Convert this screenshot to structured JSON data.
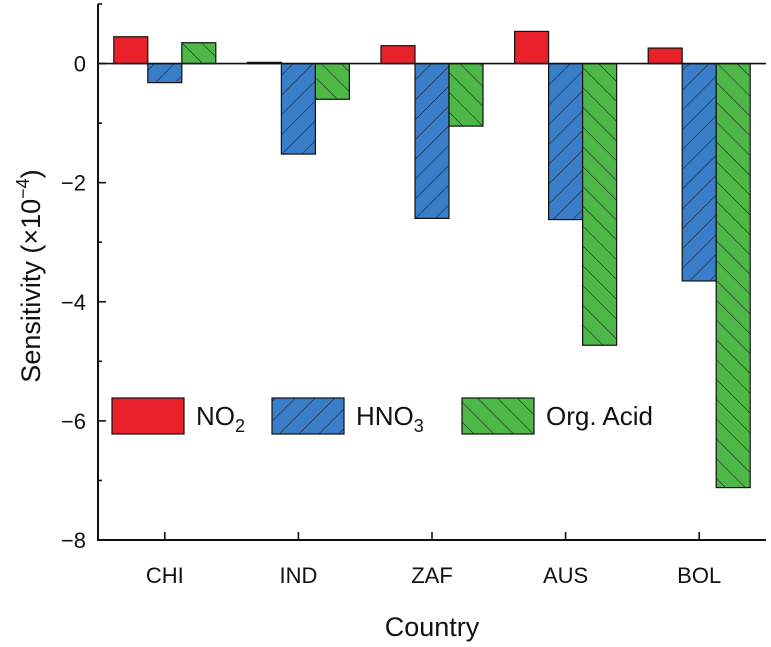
{
  "chart_data": {
    "type": "bar",
    "categories": [
      "CHI",
      "IND",
      "ZAF",
      "AUS",
      "BOL"
    ],
    "series": [
      {
        "name": "NO",
        "name_sub": "2",
        "color": "#e8202a",
        "pattern": "none",
        "values": [
          0.45,
          0.02,
          0.3,
          0.54,
          0.26
        ]
      },
      {
        "name": "HNO",
        "name_sub": "3",
        "color": "#3a7dc9",
        "pattern": "forward-hatch",
        "values": [
          -0.32,
          -1.52,
          -2.6,
          -2.62,
          -3.65
        ]
      },
      {
        "name": "Org. Acid",
        "name_sub": "",
        "color": "#4db848",
        "pattern": "back-hatch",
        "values": [
          0.35,
          -0.6,
          -1.05,
          -4.73,
          -7.12
        ]
      }
    ],
    "xlabel": "Country",
    "ylabel_main": "Sensitivity (×10",
    "ylabel_exp": "−4",
    "ylabel_close": ")",
    "ylim": [
      -8,
      1
    ],
    "yticks": [
      0,
      -2,
      -4,
      -6,
      -8
    ],
    "ytick_labels": [
      "0",
      "−2",
      "−4",
      "−6",
      "−8"
    ],
    "grid": false,
    "legend_position": "inside-lower-left"
  }
}
